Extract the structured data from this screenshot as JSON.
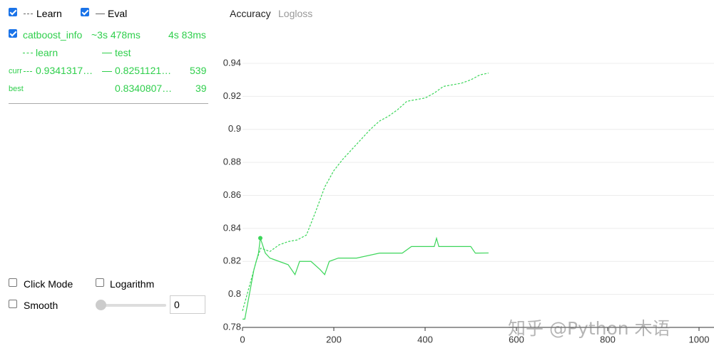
{
  "header": {
    "learn_label": "Learn",
    "eval_label": "Eval"
  },
  "run": {
    "name": "catboost_info",
    "elapsed": "~3s 478ms",
    "remaining": "4s 83ms",
    "curr_label": "curr",
    "curr_learn": "0.9341317…",
    "curr_test": "0.8251121…",
    "curr_iter": 539,
    "best_label": "best",
    "best_test": "0.8340807…",
    "best_iter": 39
  },
  "controls": {
    "click_mode": "Click Mode",
    "logarithm": "Logarithm",
    "smooth": "Smooth",
    "smooth_value": 0
  },
  "tabs": [
    "Accuracy",
    "Logloss"
  ],
  "watermark": "知乎 @Python 木语",
  "chart_data": {
    "type": "line",
    "grid": true,
    "xlim": [
      0,
      1000
    ],
    "xticks": [
      0,
      200,
      400,
      600,
      800,
      1000
    ],
    "ylim": [
      0.78,
      0.945
    ],
    "yticks": [
      0.78,
      0.8,
      0.82,
      0.84,
      0.86,
      0.88,
      0.9,
      0.92,
      0.94
    ],
    "series": [
      {
        "name": "learn",
        "color": "#3cd65a",
        "dash": true,
        "x": [
          0,
          10,
          20,
          30,
          40,
          60,
          80,
          100,
          120,
          140,
          160,
          180,
          200,
          220,
          240,
          260,
          280,
          300,
          320,
          340,
          360,
          380,
          400,
          420,
          440,
          460,
          480,
          500,
          520,
          539
        ],
        "values": [
          0.79,
          0.8,
          0.81,
          0.82,
          0.828,
          0.826,
          0.83,
          0.832,
          0.833,
          0.836,
          0.85,
          0.865,
          0.875,
          0.882,
          0.888,
          0.894,
          0.9,
          0.905,
          0.908,
          0.912,
          0.917,
          0.918,
          0.919,
          0.922,
          0.926,
          0.927,
          0.928,
          0.93,
          0.933,
          0.9341
        ]
      },
      {
        "name": "test",
        "color": "#3cd65a",
        "dash": false,
        "x": [
          0,
          5,
          15,
          25,
          35,
          39,
          50,
          60,
          80,
          100,
          115,
          125,
          150,
          170,
          180,
          190,
          210,
          250,
          300,
          350,
          370,
          420,
          425,
          430,
          500,
          510,
          539
        ],
        "values": [
          0.785,
          0.785,
          0.8,
          0.815,
          0.825,
          0.8341,
          0.825,
          0.822,
          0.82,
          0.818,
          0.812,
          0.82,
          0.82,
          0.815,
          0.812,
          0.82,
          0.822,
          0.822,
          0.825,
          0.825,
          0.829,
          0.829,
          0.834,
          0.829,
          0.829,
          0.825,
          0.8251
        ]
      }
    ]
  }
}
